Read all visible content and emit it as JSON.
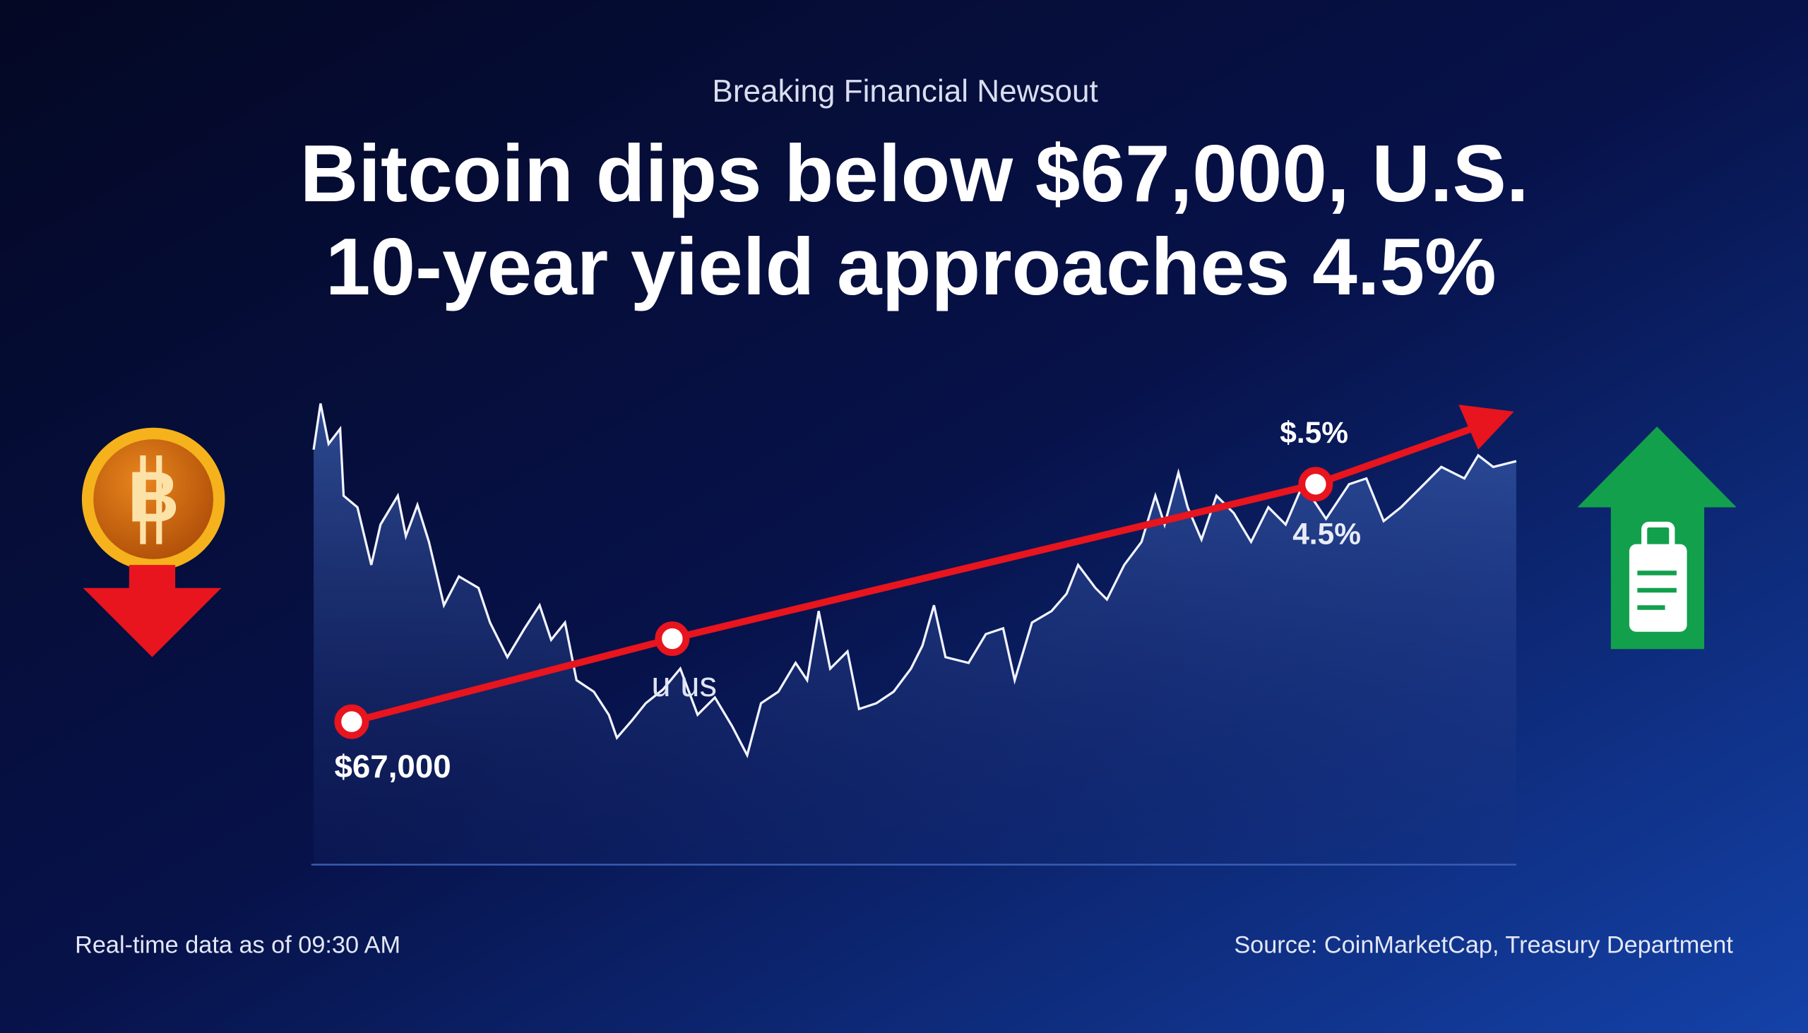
{
  "header": {
    "kicker": "Breaking Financial Newsout",
    "title_lines": [
      "Bitcoin dips below $67,000, U.S.",
      "10-year yield approaches 4.5%"
    ]
  },
  "chart": {
    "annotations": [
      "$67,000",
      "u us",
      "$.5%",
      "4.5%"
    ],
    "bitcoin_symbol": "B"
  },
  "footer": {
    "left": "Real-time data as of 09:30 AM",
    "right": "Source: CoinMarketCap, Treasury Department"
  }
}
